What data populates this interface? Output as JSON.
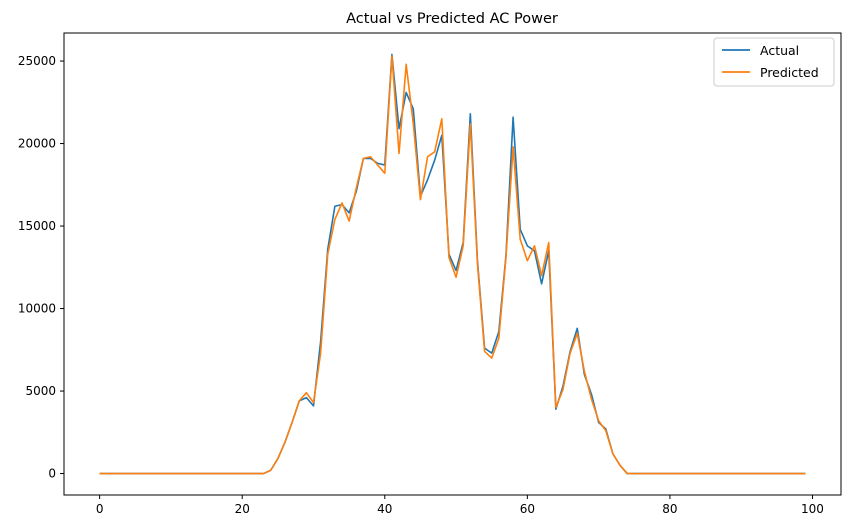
{
  "chart_data": {
    "type": "line",
    "title": "Actual vs Predicted AC Power",
    "xlabel": "",
    "ylabel": "",
    "xlim": [
      -5,
      104
    ],
    "ylim": [
      -1300,
      26700
    ],
    "xticks": [
      0,
      20,
      40,
      60,
      80,
      100
    ],
    "yticks": [
      0,
      5000,
      10000,
      15000,
      20000,
      25000
    ],
    "grid": false,
    "legend_position": "top-right",
    "x": [
      0,
      1,
      2,
      3,
      4,
      5,
      6,
      7,
      8,
      9,
      10,
      11,
      12,
      13,
      14,
      15,
      16,
      17,
      18,
      19,
      20,
      21,
      22,
      23,
      24,
      25,
      26,
      27,
      28,
      29,
      30,
      31,
      32,
      33,
      34,
      35,
      36,
      37,
      38,
      39,
      40,
      41,
      42,
      43,
      44,
      45,
      46,
      47,
      48,
      49,
      50,
      51,
      52,
      53,
      54,
      55,
      56,
      57,
      58,
      59,
      60,
      61,
      62,
      63,
      64,
      65,
      66,
      67,
      68,
      69,
      70,
      71,
      72,
      73,
      74,
      75,
      76,
      77,
      78,
      79,
      80,
      81,
      82,
      83,
      84,
      85,
      86,
      87,
      88,
      89,
      90,
      91,
      92,
      93,
      94,
      95,
      96,
      97,
      98,
      99
    ],
    "series": [
      {
        "name": "Actual",
        "color": "#1f77b4",
        "values": [
          0,
          0,
          0,
          0,
          0,
          0,
          0,
          0,
          0,
          0,
          0,
          0,
          0,
          0,
          0,
          0,
          0,
          0,
          0,
          0,
          0,
          0,
          0,
          0,
          200,
          900,
          1900,
          3100,
          4400,
          4600,
          4100,
          8000,
          13600,
          16200,
          16300,
          15800,
          17100,
          19100,
          19100,
          18800,
          18700,
          25400,
          20900,
          23100,
          22100,
          16800,
          17800,
          19000,
          20500,
          13300,
          12300,
          14000,
          21800,
          12900,
          7600,
          7300,
          8600,
          13200,
          21600,
          14800,
          13800,
          13500,
          11500,
          13500,
          3900,
          5300,
          7400,
          8800,
          6000,
          4800,
          3100,
          2700,
          1200,
          500,
          0,
          0,
          0,
          0,
          0,
          0,
          0,
          0,
          0,
          0,
          0,
          0,
          0,
          0,
          0,
          0,
          0,
          0,
          0,
          0,
          0,
          0,
          0,
          0,
          0,
          0
        ]
      },
      {
        "name": "Predicted",
        "color": "#ff7f0e",
        "values": [
          0,
          0,
          0,
          0,
          0,
          0,
          0,
          0,
          0,
          0,
          0,
          0,
          0,
          0,
          0,
          0,
          0,
          0,
          0,
          0,
          0,
          0,
          0,
          0,
          200,
          900,
          1900,
          3100,
          4400,
          4900,
          4300,
          7300,
          13300,
          15400,
          16400,
          15300,
          17300,
          19100,
          19200,
          18700,
          18200,
          25300,
          19400,
          24800,
          21200,
          16600,
          19200,
          19500,
          21500,
          13100,
          11900,
          13800,
          21200,
          12700,
          7400,
          7000,
          8200,
          13100,
          19800,
          14200,
          12900,
          13800,
          12000,
          14000,
          4000,
          5100,
          7300,
          8500,
          6200,
          4500,
          3200,
          2600,
          1200,
          500,
          0,
          0,
          0,
          0,
          0,
          0,
          0,
          0,
          0,
          0,
          0,
          0,
          0,
          0,
          0,
          0,
          0,
          0,
          0,
          0,
          0,
          0,
          0,
          0,
          0,
          0
        ]
      }
    ]
  }
}
